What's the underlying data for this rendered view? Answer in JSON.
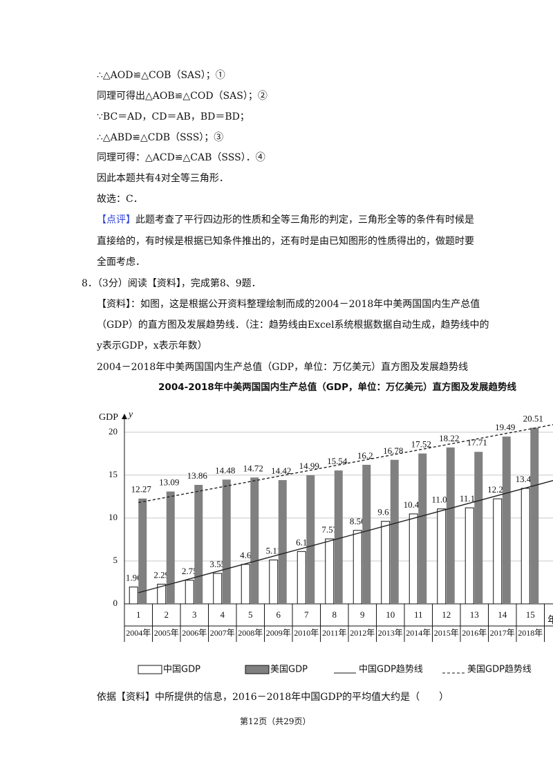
{
  "lines": [
    "∴△AOD≌△COB（SAS）；①",
    "同理可得出△AOB≌△COD（SAS）；②",
    "∵BC＝AD，CD＝AB，BD＝BD；",
    "∴△ABD≌△CDB（SSS）；③",
    "同理可得：△ACD≌△CAB（SSS）．④",
    "因此本题共有4对全等三角形．",
    "故选：C．"
  ],
  "comment": {
    "label": "【点评】",
    "lines": [
      "此题考查了平行四边形的性质和全等三角形的判定，三角形全等的条件有时候是",
      "直接给的，有时候是根据已知条件推出的，还有时是由已知图形的性质得出的，做题时要",
      "全面考虑．"
    ]
  },
  "question": {
    "head": "8．（3分）阅读【资料】，完成第8、9题．",
    "material": [
      "【资料】：如图，这是根据公开资料整理绘制而成的2004－2018年中美两国国内生产总值",
      "（GDP）的直方图及发展趋势线．（注：趋势线由Excel系统根据数据自动生成，趋势线中的",
      "y表示GDP，x表示年数）",
      "2004－2018年中美两国国内生产总值（GDP，单位：万亿美元）直方图及发展趋势线"
    ],
    "ask": "依据【资料】中所提供的信息，2016－2018年中国GDP的平均值大约是（　　）"
  },
  "chart_data": {
    "type": "bar",
    "title": "2004-2018年中美两国国内生产总值（GDP，单位：万亿美元）直方图及发展趋势线",
    "y_label": "GDP",
    "y_arrow_label": "y",
    "x_label": "年",
    "categories": [
      "1",
      "2",
      "3",
      "4",
      "5",
      "6",
      "7",
      "8",
      "9",
      "10",
      "11",
      "12",
      "13",
      "14",
      "15"
    ],
    "years": [
      "2004年",
      "2005年",
      "2006年",
      "2007年",
      "2008年",
      "2009年",
      "2010年",
      "2011年",
      "2012年",
      "2013年",
      "2014年",
      "2015年",
      "2016年",
      "2017年",
      "2018年"
    ],
    "series": [
      {
        "name": "中国GDP",
        "color": "#ffffff",
        "values": [
          1.96,
          2.29,
          2.75,
          3.55,
          4.6,
          5.11,
          6.1,
          7.57,
          8.56,
          9.61,
          10.48,
          11.06,
          11.19,
          12.24,
          13.46
        ]
      },
      {
        "name": "美国GDP",
        "color": "#808080",
        "values": [
          12.27,
          13.09,
          13.86,
          14.48,
          14.72,
          14.42,
          14.99,
          15.54,
          16.2,
          16.78,
          17.52,
          18.22,
          17.71,
          19.49,
          20.51
        ]
      }
    ],
    "trends": [
      {
        "name": "中国GDP趋势线",
        "style": "solid",
        "x": [
          1,
          15.85
        ],
        "values": [
          1.3,
          14.4
        ]
      },
      {
        "name": "美国GDP趋势线",
        "style": "dashed",
        "x": [
          1,
          15.85
        ],
        "values": [
          11.8,
          20.9
        ]
      }
    ],
    "ylim": [
      0,
      22
    ],
    "yticks": [
      0,
      5,
      10,
      15,
      20
    ],
    "grid": true
  },
  "footer": "第12页（共29页）"
}
